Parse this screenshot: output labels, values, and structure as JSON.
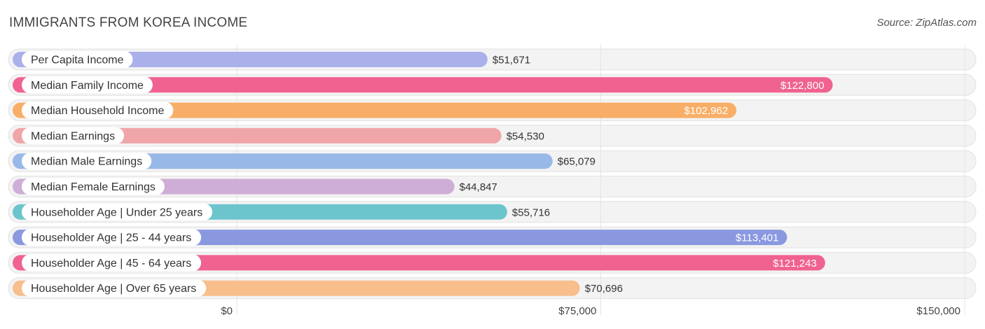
{
  "title": "IMMIGRANTS FROM KOREA INCOME",
  "source": "Source: ZipAtlas.com",
  "chart_data": {
    "type": "bar",
    "orientation": "horizontal",
    "title": "IMMIGRANTS FROM KOREA INCOME",
    "xlim": [
      0,
      150000
    ],
    "ticks": [
      {
        "value": 0,
        "label": "$0"
      },
      {
        "value": 75000,
        "label": "$75,000"
      },
      {
        "value": 150000,
        "label": "$150,000"
      }
    ],
    "categories": [
      "Per Capita Income",
      "Median Family Income",
      "Median Household Income",
      "Median Earnings",
      "Median Male Earnings",
      "Median Female Earnings",
      "Householder Age | Under 25 years",
      "Householder Age | 25 - 44 years",
      "Householder Age | 45 - 64 years",
      "Householder Age | Over 65 years"
    ],
    "values": [
      51671,
      122800,
      102962,
      54530,
      65079,
      44847,
      55716,
      113401,
      121243,
      70696
    ],
    "value_labels": [
      "$51,671",
      "$122,800",
      "$102,962",
      "$54,530",
      "$65,079",
      "$44,847",
      "$55,716",
      "$113,401",
      "$121,243",
      "$70,696"
    ],
    "colors": [
      "#a9b0ea",
      "#f0628f",
      "#f8ae67",
      "#f0a5a8",
      "#98b9e8",
      "#ceaed6",
      "#6cc5cd",
      "#8a98e0",
      "#f0628f",
      "#f8bf8c"
    ]
  }
}
